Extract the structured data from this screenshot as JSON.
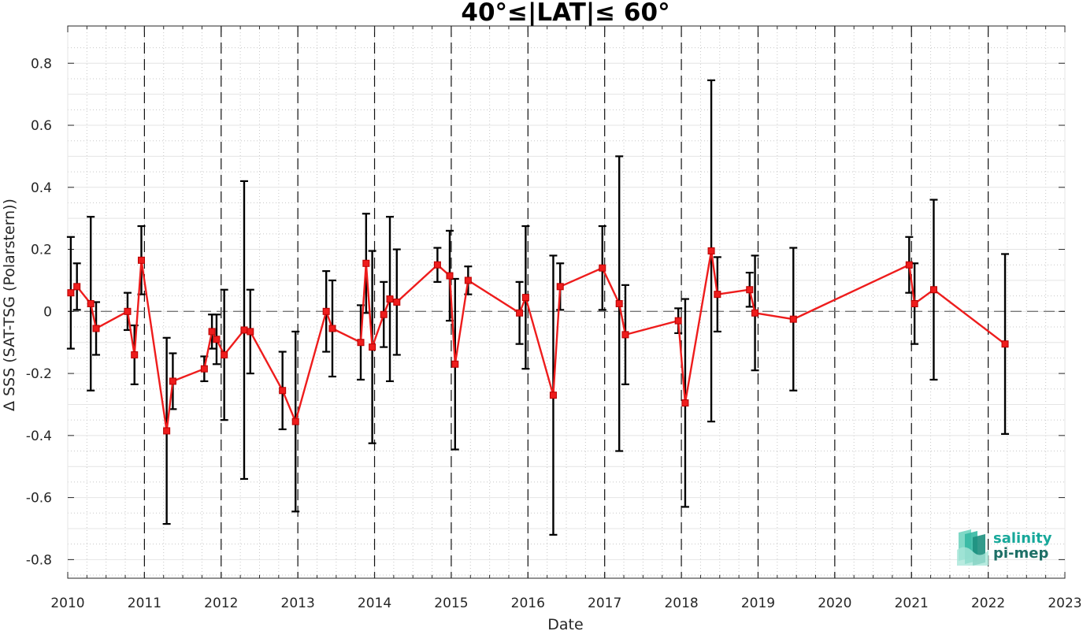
{
  "chart_data": {
    "type": "line",
    "title": "40°≤|LAT|≤ 60°",
    "xlabel": "Date",
    "ylabel": "Δ SSS (SAT-TSG (Polarstern))",
    "xlim": [
      2010,
      2023
    ],
    "ylim": [
      -0.86,
      0.92
    ],
    "x_ticks": [
      "2010",
      "2011",
      "2012",
      "2013",
      "2014",
      "2015",
      "2016",
      "2017",
      "2018",
      "2019",
      "2020",
      "2021",
      "2022",
      "2023"
    ],
    "y_ticks": [
      "-0.8",
      "-0.6",
      "-0.4",
      "-0.2",
      "0",
      "0.2",
      "0.4",
      "0.6",
      "0.8"
    ],
    "grid": true,
    "zero_reference_line": true,
    "year_boundary_lines": true,
    "colors": {
      "series": "#ee1c1c",
      "errorbar": "#000000",
      "grid": "#c8c8c8"
    },
    "series": [
      {
        "x": [
          2010.04,
          2010.12,
          2010.3,
          2010.37,
          2010.78,
          2010.87,
          2010.96,
          2011.29,
          2011.37,
          2011.78,
          2011.88,
          2011.94,
          2012.04,
          2012.3,
          2012.38,
          2012.8,
          2012.97,
          2013.37,
          2013.45,
          2013.82,
          2013.89,
          2013.97,
          2014.12,
          2014.2,
          2014.29,
          2014.82,
          2014.98,
          2015.05,
          2015.22,
          2015.89,
          2015.97,
          2016.33,
          2016.42,
          2016.97,
          2017.19,
          2017.27,
          2017.96,
          2018.05,
          2018.39,
          2018.47,
          2018.89,
          2018.96,
          2019.46,
          2020.97,
          2021.04,
          2021.29,
          2022.22
        ],
        "values": [
          0.06,
          0.08,
          0.025,
          -0.055,
          0.0,
          -0.14,
          0.165,
          -0.385,
          -0.225,
          -0.185,
          -0.065,
          -0.09,
          -0.14,
          -0.06,
          -0.065,
          -0.255,
          -0.355,
          0.0,
          -0.055,
          -0.1,
          0.155,
          -0.115,
          -0.01,
          0.04,
          0.03,
          0.15,
          0.115,
          -0.17,
          0.1,
          -0.005,
          0.045,
          -0.27,
          0.08,
          0.14,
          0.025,
          -0.075,
          -0.03,
          -0.295,
          0.195,
          0.055,
          0.07,
          -0.005,
          -0.025,
          0.15,
          0.025,
          0.07,
          -0.105
        ],
        "error": [
          0.18,
          0.075,
          0.28,
          0.085,
          0.06,
          0.095,
          0.11,
          0.3,
          0.09,
          0.04,
          0.055,
          0.08,
          0.21,
          0.48,
          0.135,
          0.125,
          0.29,
          0.13,
          0.155,
          0.12,
          0.16,
          0.31,
          0.105,
          0.265,
          0.17,
          0.055,
          0.145,
          0.275,
          0.045,
          0.1,
          0.23,
          0.45,
          0.075,
          0.135,
          0.475,
          0.16,
          0.04,
          0.335,
          0.55,
          0.12,
          0.055,
          0.185,
          0.23,
          0.09,
          0.13,
          0.29,
          0.29
        ]
      }
    ]
  },
  "logo": {
    "line1": "salinity",
    "line2": "pi-mep"
  }
}
